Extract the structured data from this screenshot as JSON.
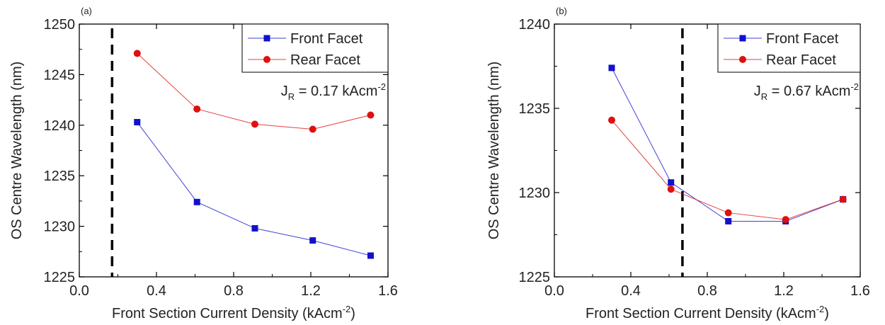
{
  "chart_data": [
    {
      "type": "line",
      "panel_label": "(a)",
      "xlabel": "Front Section Current Density (kAcm",
      "xlabel_sup": "-2",
      "xlabel_close": ")",
      "ylabel": "OS Centre Wavelength (nm)",
      "xlim": [
        0.0,
        1.6
      ],
      "ylim": [
        1225,
        1250
      ],
      "x_ticks": [
        "0.0",
        "0.4",
        "0.8",
        "1.2",
        "1.6"
      ],
      "y_ticks": [
        "1225",
        "1230",
        "1235",
        "1240",
        "1245",
        "1250"
      ],
      "x_tick_values": [
        0.0,
        0.4,
        0.8,
        1.2,
        1.6
      ],
      "y_tick_values": [
        1225,
        1230,
        1235,
        1240,
        1245,
        1250
      ],
      "annotation": {
        "main": "J",
        "sub": "R",
        "rest": " = 0.17 kAcm",
        "sup": "-2"
      },
      "vline_x": 0.17,
      "legend_position": "top-right",
      "series": [
        {
          "name": "Front Facet",
          "color": "#1111cc",
          "marker": "square",
          "x": [
            0.3,
            0.61,
            0.91,
            1.21,
            1.51
          ],
          "y": [
            1240.3,
            1232.4,
            1229.8,
            1228.6,
            1227.1
          ]
        },
        {
          "name": "Rear Facet",
          "color": "#dd1111",
          "marker": "circle",
          "x": [
            0.3,
            0.61,
            0.91,
            1.21,
            1.51
          ],
          "y": [
            1247.1,
            1241.6,
            1240.1,
            1239.6,
            1241.0
          ]
        }
      ]
    },
    {
      "type": "line",
      "panel_label": "(b)",
      "xlabel": "Front Section Current Density (kAcm",
      "xlabel_sup": "-2",
      "xlabel_close": ")",
      "ylabel": "OS Centre Wavelength (nm)",
      "xlim": [
        0.0,
        1.6
      ],
      "ylim": [
        1225,
        1240
      ],
      "x_ticks": [
        "0.0",
        "0.4",
        "0.8",
        "1.2",
        "1.6"
      ],
      "y_ticks": [
        "1225",
        "1230",
        "1235",
        "1240"
      ],
      "x_tick_values": [
        0.0,
        0.4,
        0.8,
        1.2,
        1.6
      ],
      "y_tick_values": [
        1225,
        1230,
        1235,
        1240
      ],
      "annotation": {
        "main": "J",
        "sub": "R",
        "rest": " = 0.67 kAcm",
        "sup": "-2"
      },
      "vline_x": 0.67,
      "legend_position": "top-right",
      "series": [
        {
          "name": "Front Facet",
          "color": "#1111cc",
          "marker": "square",
          "x": [
            0.3,
            0.61,
            0.91,
            1.21,
            1.51
          ],
          "y": [
            1237.4,
            1230.6,
            1228.3,
            1228.3,
            1229.6
          ]
        },
        {
          "name": "Rear Facet",
          "color": "#dd1111",
          "marker": "circle",
          "x": [
            0.3,
            0.61,
            0.91,
            1.21,
            1.51
          ],
          "y": [
            1234.3,
            1230.2,
            1228.8,
            1228.4,
            1229.6
          ]
        }
      ]
    }
  ]
}
